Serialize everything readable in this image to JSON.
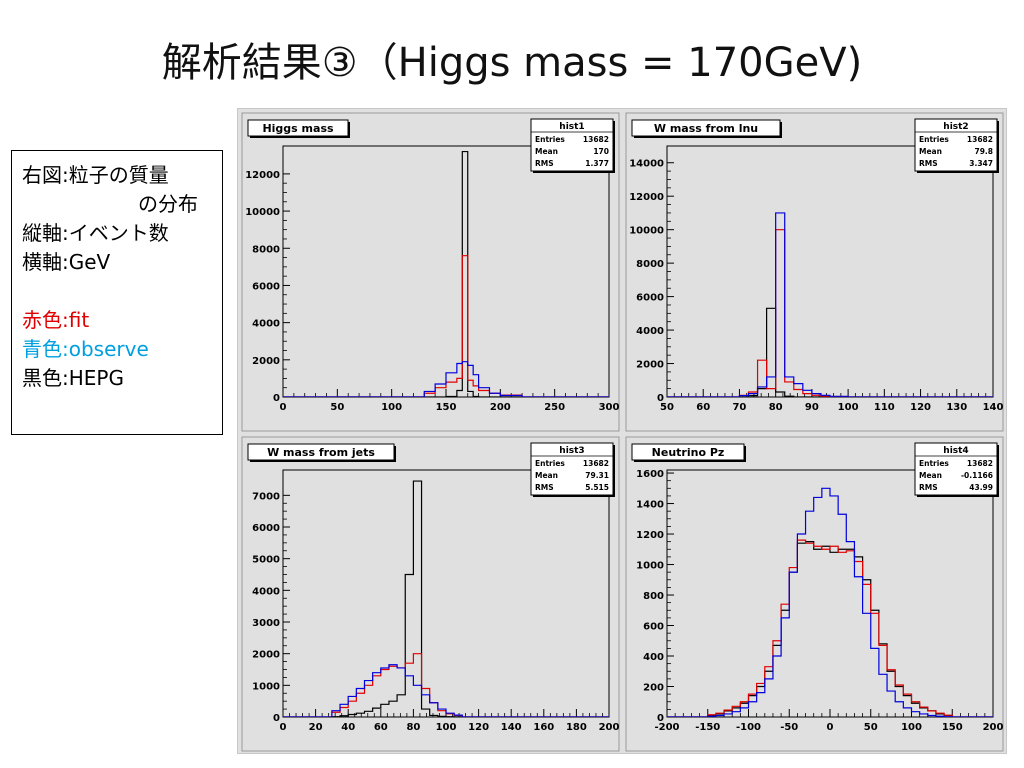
{
  "title": "解析結果③（Higgs mass = 170GeV)",
  "legend": {
    "row1_key": "右図",
    "row1_val": "粒子の質量",
    "row1_cont": "の分布",
    "row2_key": "縦軸",
    "row2_val": "イベント数",
    "row3_key": "横軸",
    "row3_val": "GeV",
    "row4_key": "赤色",
    "row4_val": "fit",
    "row5_key": "青色",
    "row5_val": "observe",
    "row6_key": "黒色",
    "row6_val": "HEPG",
    "sep": ":"
  },
  "colors": {
    "fit": "#e00000",
    "observe": "#0000dd",
    "hepg": "#000000",
    "frame_bg": "#e0e0e0",
    "legend_fit_text": "#e00000",
    "legend_observe_text": "#00a0e0"
  },
  "chart_data": [
    {
      "type": "histogram",
      "title": "Higgs mass",
      "stats": {
        "name": "hist1",
        "entries_label": "Entries",
        "entries": "13682",
        "mean_label": "Mean",
        "mean": "170",
        "rms_label": "RMS",
        "rms": "1.377"
      },
      "xlim": [
        0,
        300
      ],
      "ylim": [
        0,
        13500
      ],
      "xticks": [
        0,
        50,
        100,
        150,
        200,
        250,
        300
      ],
      "yticks": [
        0,
        2000,
        4000,
        6000,
        8000,
        10000,
        12000
      ],
      "bin_edges": [
        130,
        140,
        150,
        160,
        165,
        170,
        175,
        180,
        190,
        200,
        220
      ],
      "series": [
        {
          "color_key": "hepg",
          "values": [
            0,
            0,
            30,
            350,
            13200,
            300,
            30,
            0,
            0,
            0
          ]
        },
        {
          "color_key": "fit",
          "values": [
            200,
            500,
            800,
            1000,
            7600,
            900,
            600,
            350,
            200,
            100
          ]
        },
        {
          "color_key": "observe",
          "values": [
            300,
            700,
            1300,
            1800,
            1900,
            1700,
            1200,
            500,
            200,
            80
          ]
        }
      ]
    },
    {
      "type": "histogram",
      "title": "W mass from lnu",
      "stats": {
        "name": "hist2",
        "entries_label": "Entries",
        "entries": "13682",
        "mean_label": "Mean",
        "mean": "79.8",
        "rms_label": "RMS",
        "rms": "3.347"
      },
      "xlim": [
        50,
        140
      ],
      "ylim": [
        0,
        15000
      ],
      "xticks": [
        50,
        60,
        70,
        80,
        90,
        100,
        110,
        120,
        130,
        140
      ],
      "yticks": [
        0,
        2000,
        4000,
        6000,
        8000,
        10000,
        12000,
        14000
      ],
      "bin_edges": [
        70,
        72.5,
        75,
        77.5,
        80,
        82.5,
        85,
        87.5,
        90,
        92.5,
        95,
        100
      ],
      "series": [
        {
          "color_key": "hepg",
          "values": [
            0,
            80,
            500,
            5300,
            300,
            50,
            0,
            0,
            0,
            0,
            0
          ]
        },
        {
          "color_key": "fit",
          "values": [
            100,
            300,
            2200,
            500,
            10000,
            900,
            450,
            200,
            100,
            50,
            20
          ]
        },
        {
          "color_key": "observe",
          "values": [
            80,
            200,
            600,
            1200,
            11000,
            1200,
            800,
            400,
            200,
            100,
            40
          ]
        }
      ]
    },
    {
      "type": "histogram",
      "title": "W mass from jets",
      "stats": {
        "name": "hist3",
        "entries_label": "Entries",
        "entries": "13682",
        "mean_label": "Mean",
        "mean": "79.31",
        "rms_label": "RMS",
        "rms": "5.515"
      },
      "xlim": [
        0,
        200
      ],
      "ylim": [
        0,
        7800
      ],
      "xticks": [
        0,
        20,
        40,
        60,
        80,
        100,
        120,
        140,
        160,
        180,
        200
      ],
      "yticks": [
        0,
        1000,
        2000,
        3000,
        4000,
        5000,
        6000,
        7000
      ],
      "bin_edges": [
        30,
        35,
        40,
        45,
        50,
        55,
        60,
        65,
        70,
        75,
        80,
        85,
        90,
        95,
        100,
        105,
        110
      ],
      "series": [
        {
          "color_key": "hepg",
          "values": [
            10,
            40,
            80,
            120,
            180,
            280,
            400,
            500,
            700,
            4500,
            7450,
            250,
            50,
            20,
            10,
            5
          ]
        },
        {
          "color_key": "fit",
          "values": [
            150,
            300,
            500,
            750,
            1000,
            1300,
            1500,
            1600,
            1550,
            1700,
            2000,
            900,
            450,
            200,
            100,
            50
          ]
        },
        {
          "color_key": "observe",
          "values": [
            200,
            400,
            650,
            900,
            1150,
            1400,
            1550,
            1650,
            1550,
            1300,
            1000,
            700,
            450,
            250,
            120,
            60
          ]
        }
      ]
    },
    {
      "type": "histogram",
      "title": "Neutrino Pz",
      "stats": {
        "name": "hist4",
        "entries_label": "Entries",
        "entries": "13682",
        "mean_label": "Mean",
        "mean": "-0.1166",
        "rms_label": "RMS",
        "rms": "43.99"
      },
      "xlim": [
        -200,
        200
      ],
      "ylim": [
        0,
        1620
      ],
      "xticks": [
        -200,
        -150,
        -100,
        -50,
        0,
        50,
        100,
        150,
        200
      ],
      "yticks": [
        0,
        200,
        400,
        600,
        800,
        1000,
        1200,
        1400,
        1600
      ],
      "bin_edges": [
        -150,
        -140,
        -130,
        -120,
        -110,
        -100,
        -90,
        -80,
        -70,
        -60,
        -50,
        -40,
        -30,
        -20,
        -10,
        0,
        10,
        20,
        30,
        40,
        50,
        60,
        70,
        80,
        90,
        100,
        110,
        120,
        130,
        140,
        150
      ],
      "series": [
        {
          "color_key": "hepg",
          "values": [
            10,
            20,
            40,
            60,
            90,
            140,
            200,
            300,
            470,
            700,
            950,
            1140,
            1150,
            1100,
            1120,
            1080,
            1100,
            1100,
            1050,
            900,
            700,
            480,
            300,
            200,
            140,
            90,
            60,
            40,
            20,
            10
          ]
        },
        {
          "color_key": "fit",
          "values": [
            15,
            25,
            45,
            70,
            100,
            150,
            220,
            330,
            500,
            740,
            980,
            1160,
            1140,
            1120,
            1100,
            1120,
            1080,
            1090,
            1020,
            870,
            680,
            470,
            310,
            210,
            150,
            100,
            65,
            40,
            25,
            12
          ]
        },
        {
          "color_key": "observe",
          "values": [
            5,
            10,
            20,
            35,
            60,
            100,
            160,
            250,
            400,
            650,
            950,
            1200,
            1350,
            1440,
            1500,
            1450,
            1330,
            1150,
            920,
            680,
            450,
            280,
            170,
            100,
            60,
            35,
            20,
            10,
            5,
            2
          ]
        }
      ]
    }
  ]
}
